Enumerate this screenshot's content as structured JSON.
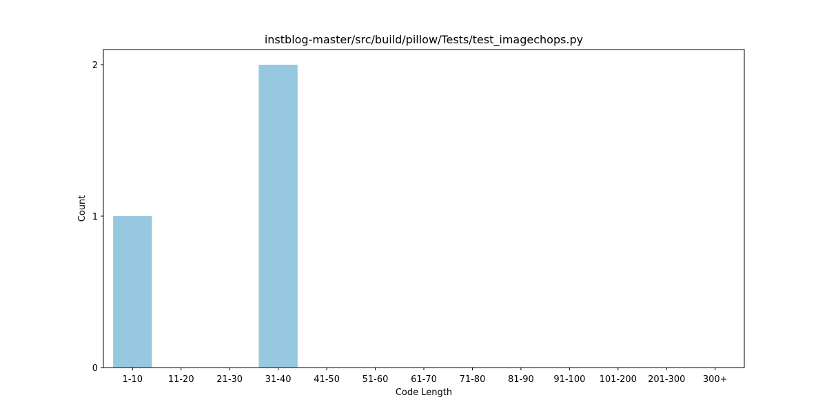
{
  "chart_data": {
    "type": "bar",
    "title": "instblog-master/src/build/pillow/Tests/test_imagechops.py",
    "xlabel": "Code Length",
    "ylabel": "Count",
    "categories": [
      "1-10",
      "11-20",
      "21-30",
      "31-40",
      "41-50",
      "51-60",
      "61-70",
      "71-80",
      "81-90",
      "91-100",
      "101-200",
      "201-300",
      "300+"
    ],
    "values": [
      1,
      0,
      0,
      2,
      0,
      0,
      0,
      0,
      0,
      0,
      0,
      0,
      0
    ],
    "ylim": [
      0,
      2.1
    ],
    "yticks": [
      0,
      1,
      2
    ],
    "grid": false,
    "bar_color": "#96c9df"
  }
}
